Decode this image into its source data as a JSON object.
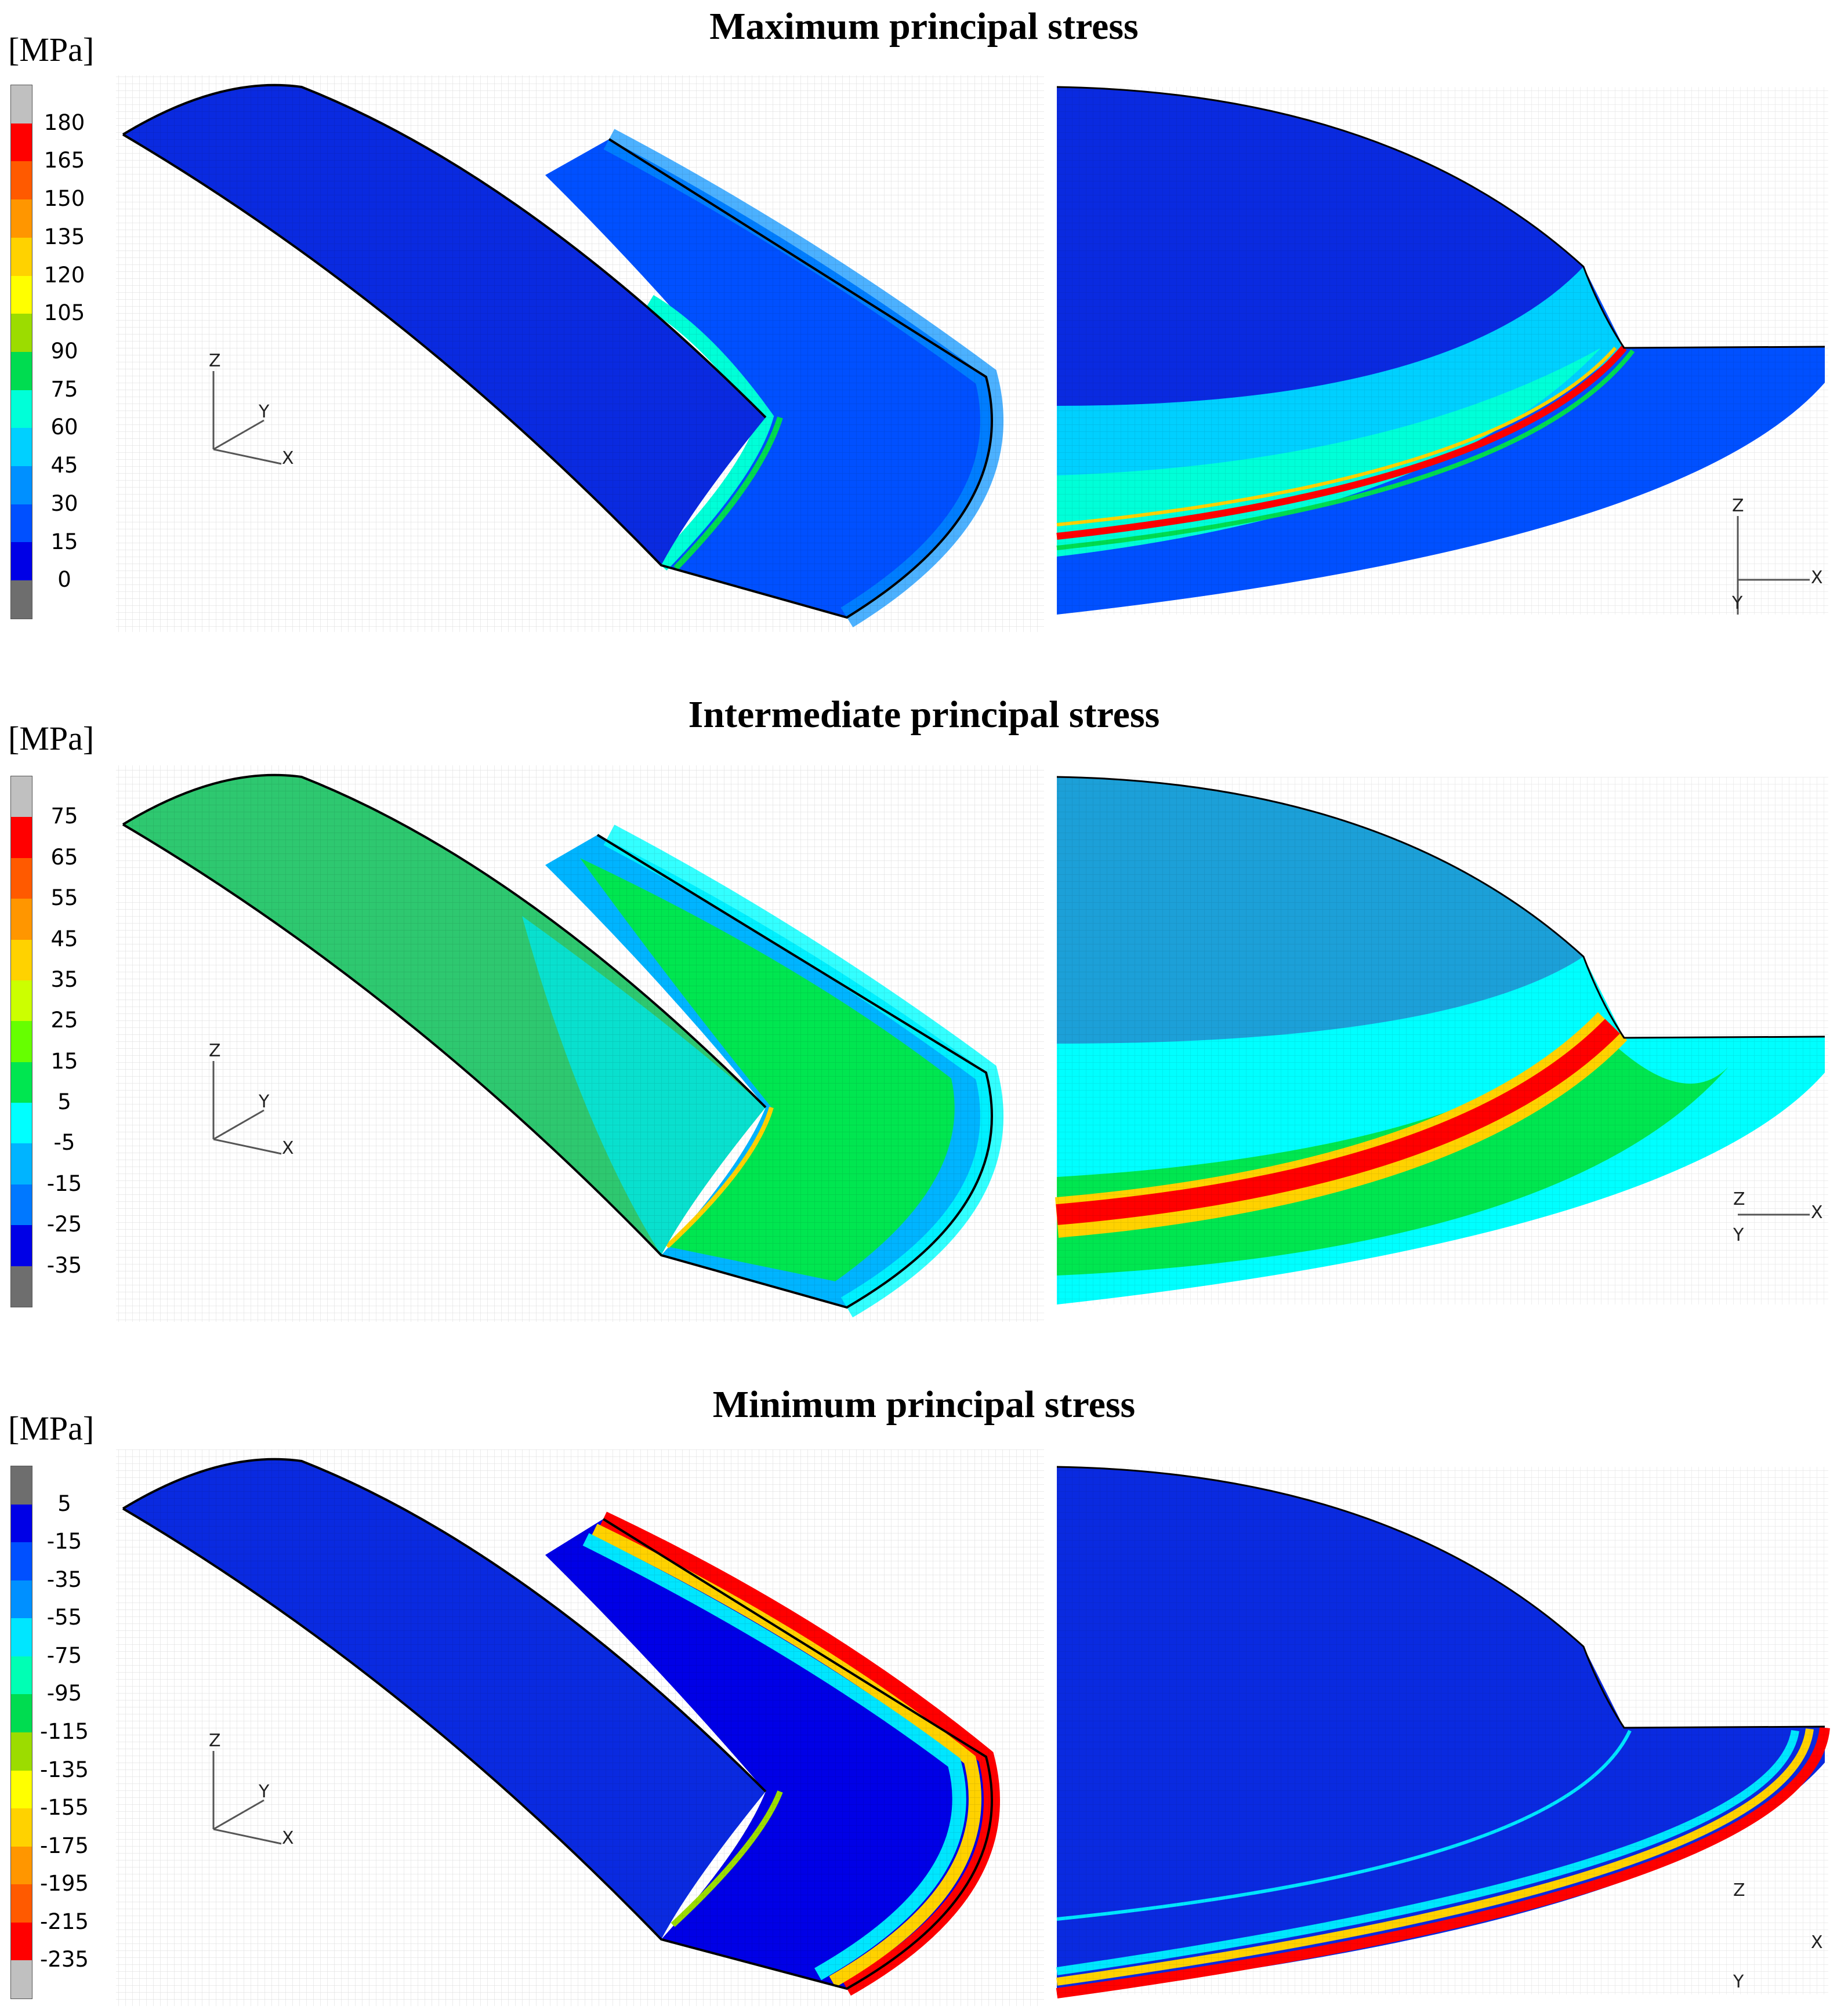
{
  "panels": [
    {
      "title": "Maximum principal stress",
      "unit": "[MPa]",
      "legend_values": [
        "180",
        "165",
        "150",
        "135",
        "120",
        "105",
        "90",
        "75",
        "60",
        "45",
        "30",
        "15",
        "0"
      ],
      "legend_colors": [
        "#c0c0c0",
        "#ff0000",
        "#ff5a00",
        "#ff9600",
        "#ffd200",
        "#ffff00",
        "#9cdc00",
        "#00dc50",
        "#00ffd8",
        "#00d0ff",
        "#0090ff",
        "#0050ff",
        "#0000e6",
        "#6e6e6e"
      ],
      "left_axes": {
        "z": "Z",
        "y": "Y",
        "x": "X"
      },
      "right_axes": {
        "z": "Z",
        "y": "Y",
        "x": "X"
      }
    },
    {
      "title": "Intermediate principal stress",
      "unit": "[MPa]",
      "legend_values": [
        "75",
        "65",
        "55",
        "45",
        "35",
        "25",
        "15",
        "5",
        "-5",
        "-15",
        "-25",
        "-35"
      ],
      "legend_colors": [
        "#c0c0c0",
        "#ff0000",
        "#ff5a00",
        "#ff9600",
        "#ffd200",
        "#ccff00",
        "#66ff00",
        "#00e650",
        "#00ffff",
        "#00b4ff",
        "#0078ff",
        "#0000e6",
        "#6e6e6e"
      ],
      "left_axes": {
        "z": "Z",
        "y": "Y",
        "x": "X"
      },
      "right_axes": {
        "z": "Z",
        "y": "Y",
        "x": "X"
      }
    },
    {
      "title": "Minimum principal stress",
      "unit": "[MPa]",
      "legend_values": [
        "5",
        "-15",
        "-35",
        "-55",
        "-75",
        "-95",
        "-115",
        "-135",
        "-155",
        "-175",
        "-195",
        "-215",
        "-235"
      ],
      "legend_colors": [
        "#6e6e6e",
        "#0000e6",
        "#0050ff",
        "#0090ff",
        "#00e6ff",
        "#00ffb4",
        "#00dc50",
        "#9cdc00",
        "#ffff00",
        "#ffd200",
        "#ff9600",
        "#ff5a00",
        "#ff0000",
        "#c0c0c0"
      ],
      "left_axes": {
        "z": "Z",
        "y": "Y",
        "x": "X"
      },
      "right_axes": {
        "z": "Z",
        "y": "Y",
        "x": "X"
      }
    }
  ]
}
